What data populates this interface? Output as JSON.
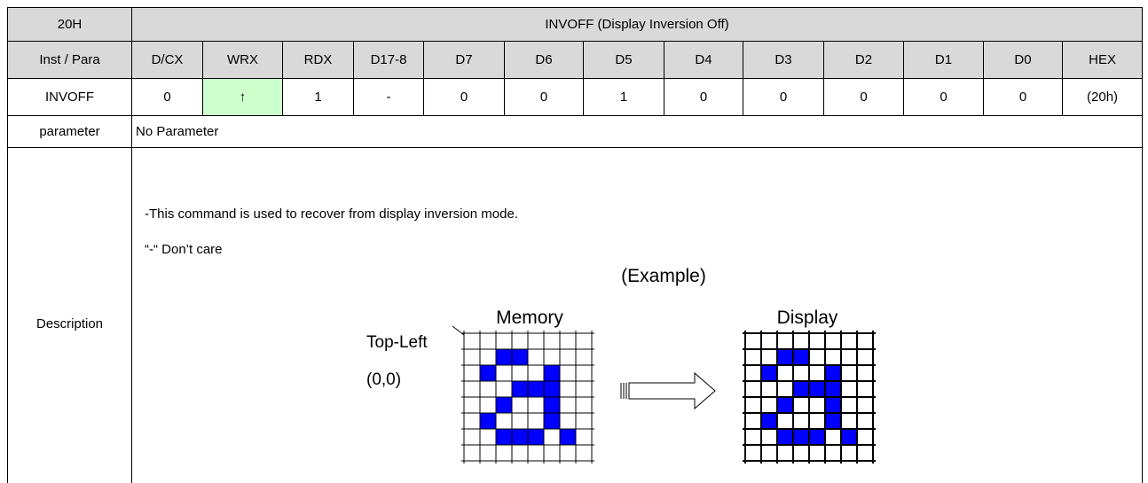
{
  "header": {
    "command": "20H",
    "title": "INVOFF (Display Inversion Off)"
  },
  "columns": [
    "Inst / Para",
    "D/CX",
    "WRX",
    "RDX",
    "D17-8",
    "D7",
    "D6",
    "D5",
    "D4",
    "D3",
    "D2",
    "D1",
    "D0",
    "HEX"
  ],
  "instruction": [
    "INVOFF",
    "0",
    "↑",
    "1",
    "-",
    "0",
    "0",
    "1",
    "0",
    "0",
    "0",
    "0",
    "0",
    "(20h)"
  ],
  "parameter": {
    "label": "parameter",
    "text": "No Parameter"
  },
  "description": {
    "label": "Description",
    "lines": [
      "-This command is used to recover from display inversion mode.",
      "“-“ Don’t care"
    ],
    "example": {
      "title": "(Example)",
      "memory": "Memory",
      "display": "Display",
      "corner": "Top-Left",
      "origin": "(0,0)"
    }
  }
}
